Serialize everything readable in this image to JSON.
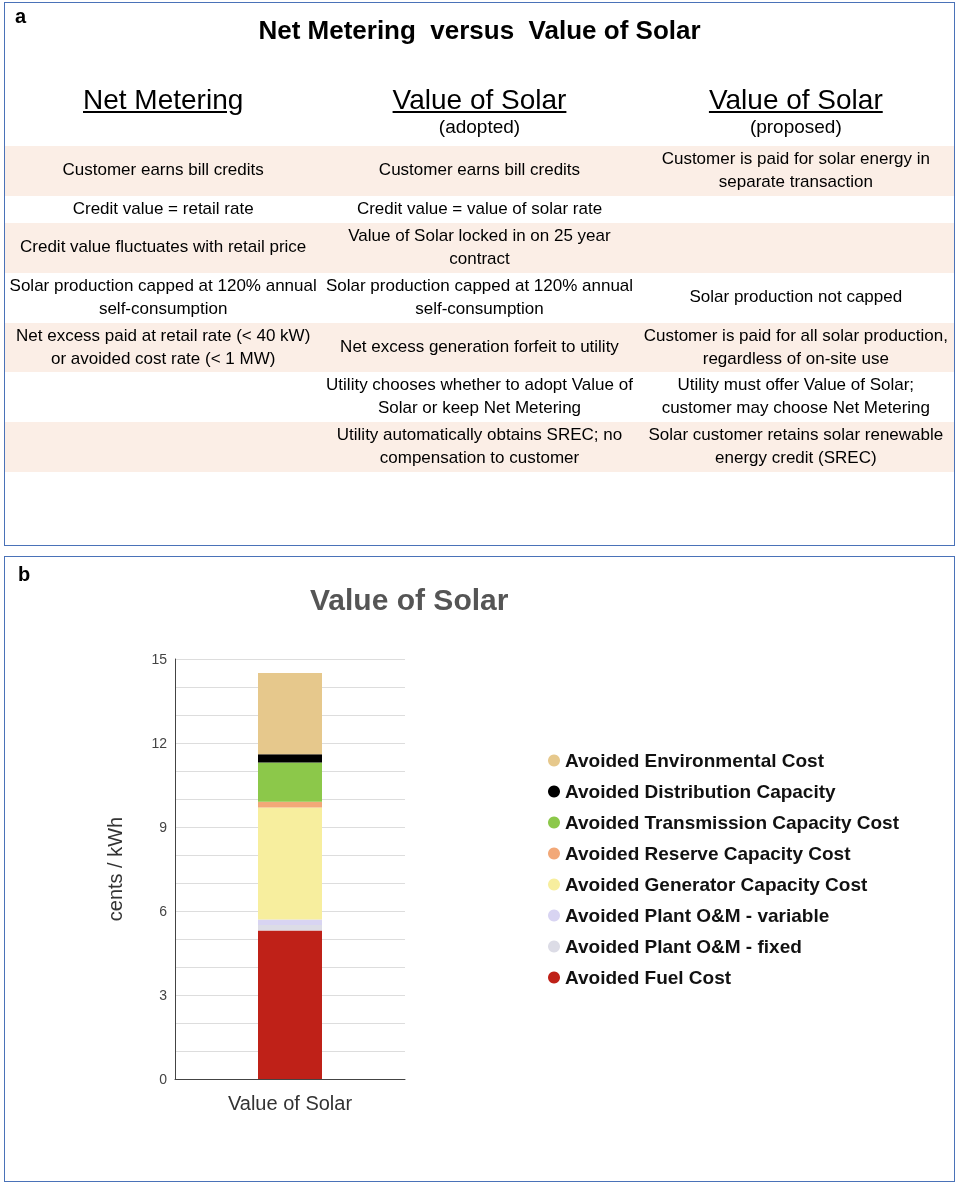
{
  "chart_data": [
    {
      "type": "other",
      "title": "Net Metering  versus  Value of Solar",
      "annotations": [
        "a",
        "Net Metering",
        "Value of Solar\n(adopted)",
        "Value of Solar\n(proposed)",
        "Customer earns bill credits",
        "Customer earns bill credits",
        "Customer is paid for solar energy in separate transaction",
        "Credit value = retail rate",
        "Credit value = value of solar rate",
        null,
        "Credit value fluctuates with retail price",
        "Value of Solar locked in on 25 year contract",
        null,
        "Solar production capped at 120% annual self-consumption",
        "Solar production capped at 120% annual self-consumption",
        "Solar production not capped",
        "Net excess paid at retail rate (< 40 kW) or avoided cost rate (< 1 MW)",
        "Net excess generation forfeit to utility",
        "Customer is paid for all solar production, regardless of on-site use",
        null,
        "Utility chooses whether to adopt Value of Solar or keep Net Metering",
        "Utility must offer Value of Solar; customer may choose Net Metering",
        null,
        "Utility automatically obtains SREC; no compensation to customer",
        "Solar customer retains solar renewable energy credit (SREC)"
      ]
    },
    {
      "type": "bar",
      "stacked": true,
      "title": "Value of Solar",
      "ylabel": "cents / kWh",
      "annotations": [
        "b"
      ],
      "categories": [
        "Value of Solar"
      ],
      "ylim": [
        0,
        15
      ],
      "yticks": [
        0,
        {
          "value": 1,
          "label": null
        },
        {
          "value": 2,
          "label": null
        },
        3,
        {
          "value": 4,
          "label": null
        },
        {
          "value": 5,
          "label": null
        },
        6,
        {
          "value": 7,
          "label": null
        },
        {
          "value": 8,
          "label": null
        },
        9,
        {
          "value": 10,
          "label": null
        },
        {
          "value": 11,
          "label": null
        },
        12,
        {
          "value": 13,
          "label": null
        },
        {
          "value": 14,
          "label": null
        },
        15
      ],
      "grid": "y",
      "legend": "right",
      "series": [
        {
          "name": "Avoided Fuel Cost",
          "color": "#bf2118",
          "values": [
            5.3
          ]
        },
        {
          "name": "Avoided Plant O&M - fixed",
          "color": "#dcdce6",
          "values": [
            0.2
          ]
        },
        {
          "name": "Avoided Plant O&M - variable",
          "color": "#d8d4f2",
          "values": [
            0.2
          ]
        },
        {
          "name": "Avoided Generator Capacity Cost",
          "color": "#f7ee9e",
          "values": [
            4.0
          ]
        },
        {
          "name": "Avoided Reserve Capacity Cost",
          "color": "#f2a878",
          "values": [
            0.2
          ]
        },
        {
          "name": "Avoided Transmission Capacity Cost",
          "color": "#8cc84a",
          "values": [
            1.4
          ]
        },
        {
          "name": "Avoided Distribution Capacity",
          "color": "#000000",
          "values": [
            0.3
          ]
        },
        {
          "name": "Avoided Environmental Cost",
          "color": "#e6c88c",
          "values": [
            2.9
          ]
        }
      ]
    }
  ]
}
